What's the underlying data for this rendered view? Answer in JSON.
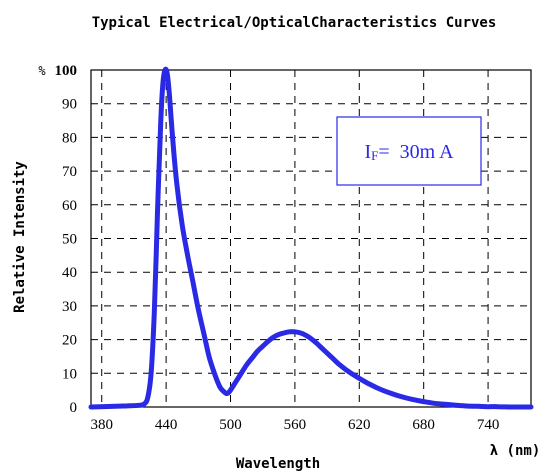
{
  "chart_data": {
    "type": "line",
    "title": "Typical Electrical/OpticalCharacteristics Curves",
    "xlabel": "Wavelength",
    "x_unit": "λ (nm)",
    "ylabel": "Relative Intensity",
    "y_unit": "%",
    "xlim": [
      370,
      780
    ],
    "ylim": [
      0,
      100
    ],
    "x_ticks": [
      "380",
      "440",
      "500",
      "560",
      "620",
      "680",
      "740"
    ],
    "y_ticks": [
      "0",
      "10",
      "20",
      "30",
      "40",
      "50",
      "60",
      "70",
      "80",
      "90",
      "100"
    ],
    "grid": true,
    "grid_style": "dashed",
    "legend_placement": "top-right",
    "annotation": {
      "main": "I",
      "sub": "F",
      "rest": "=  30m A"
    },
    "series": [
      {
        "color": "#2a2ae6",
        "x": [
          370,
          400,
          415,
          420,
          423,
          426,
          429,
          432,
          435,
          437,
          439,
          441,
          443,
          446,
          450,
          455,
          460,
          465,
          470,
          475,
          480,
          485,
          490,
          494,
          497,
          500,
          505,
          510,
          515,
          520,
          525,
          530,
          535,
          540,
          545,
          550,
          555,
          560,
          565,
          570,
          575,
          580,
          585,
          590,
          595,
          600,
          610,
          620,
          630,
          640,
          650,
          660,
          670,
          680,
          690,
          700,
          710,
          720,
          730,
          740,
          750,
          760,
          770,
          780
        ],
        "y": [
          0,
          0.3,
          0.5,
          1,
          3,
          10,
          28,
          58,
          85,
          96,
          100,
          99,
          93,
          80,
          66,
          54,
          45,
          37,
          29,
          22,
          15,
          10,
          6,
          4.5,
          4,
          5,
          7.5,
          10,
          12.5,
          14.5,
          16.5,
          18,
          19.5,
          20.7,
          21.5,
          22,
          22.3,
          22.3,
          22,
          21.3,
          20.3,
          19,
          17.5,
          16,
          14.5,
          13,
          10.5,
          8.5,
          6.7,
          5.2,
          4,
          3,
          2.2,
          1.6,
          1.1,
          0.8,
          0.5,
          0.3,
          0.2,
          0.1,
          0.1,
          0,
          0,
          0
        ]
      }
    ]
  }
}
